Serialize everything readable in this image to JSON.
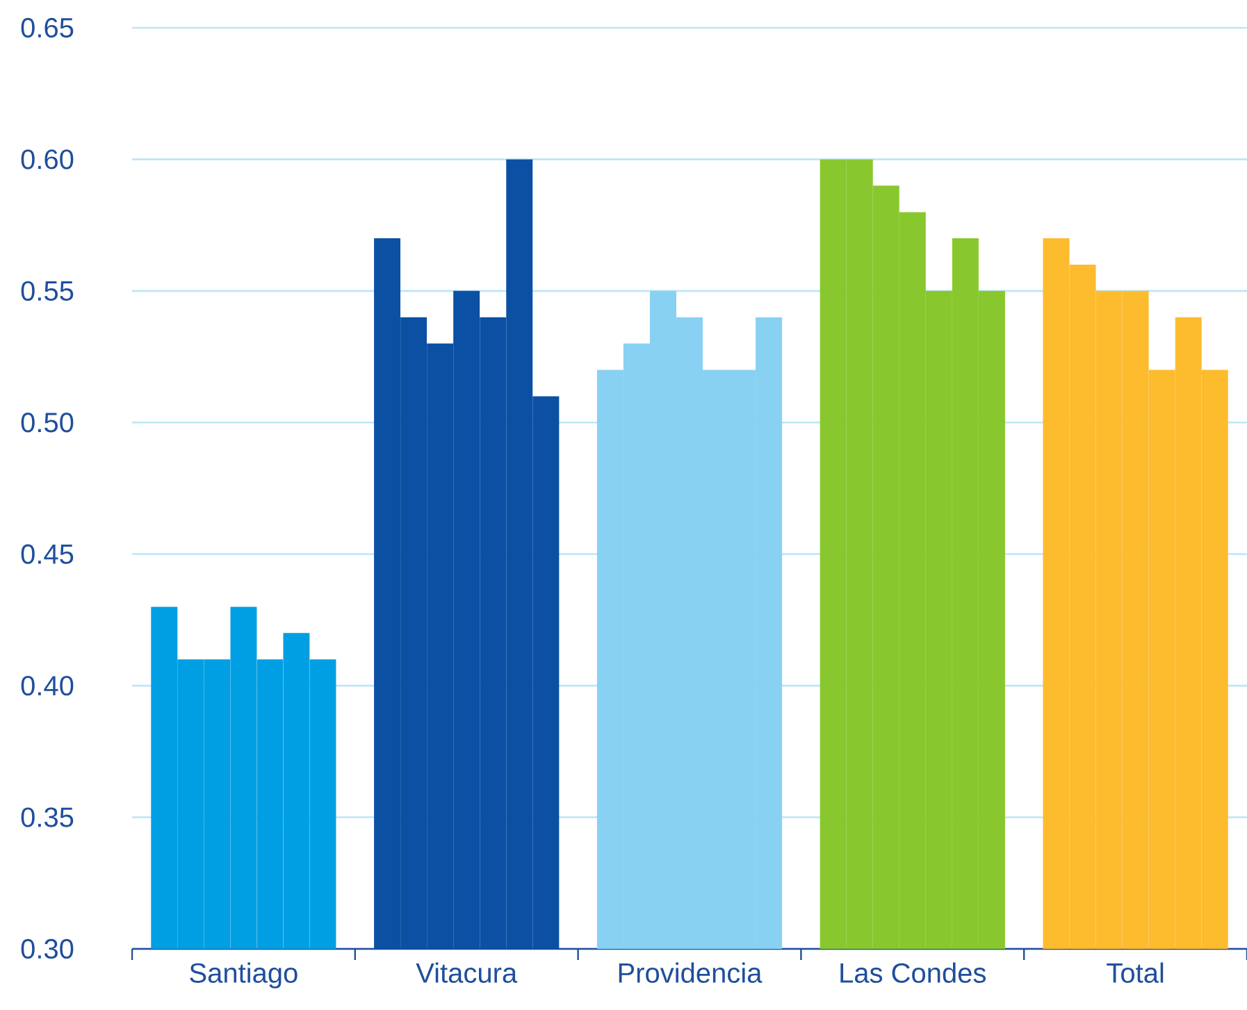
{
  "chart_data": {
    "type": "bar",
    "categories": [
      "Santiago",
      "Vitacura",
      "Providencia",
      "Las Condes",
      "Total"
    ],
    "series": [
      {
        "colors": [
          "#009fe3",
          "#0b50a3",
          "#89d1f2",
          "#88c82e",
          "#fdbb2e"
        ],
        "values": [
          0.43,
          0.57,
          0.52,
          0.6,
          0.57
        ]
      },
      {
        "colors": [
          "#009fe3",
          "#0b50a3",
          "#89d1f2",
          "#88c82e",
          "#fdbb2e"
        ],
        "values": [
          0.41,
          0.54,
          0.53,
          0.6,
          0.56
        ]
      },
      {
        "colors": [
          "#009fe3",
          "#0b50a3",
          "#89d1f2",
          "#88c82e",
          "#fdbb2e"
        ],
        "values": [
          0.41,
          0.53,
          0.55,
          0.59,
          0.55
        ]
      },
      {
        "colors": [
          "#009fe3",
          "#0b50a3",
          "#89d1f2",
          "#88c82e",
          "#fdbb2e"
        ],
        "values": [
          0.43,
          0.55,
          0.54,
          0.58,
          0.55
        ]
      },
      {
        "colors": [
          "#009fe3",
          "#0b50a3",
          "#89d1f2",
          "#88c82e",
          "#fdbb2e"
        ],
        "values": [
          0.41,
          0.54,
          0.52,
          0.55,
          0.52
        ]
      },
      {
        "colors": [
          "#009fe3",
          "#0b50a3",
          "#89d1f2",
          "#88c82e",
          "#fdbb2e"
        ],
        "values": [
          0.42,
          0.6,
          0.52,
          0.57,
          0.54
        ]
      },
      {
        "colors": [
          "#009fe3",
          "#0b50a3",
          "#89d1f2",
          "#88c82e",
          "#fdbb2e"
        ],
        "values": [
          0.41,
          0.51,
          0.54,
          0.55,
          0.52
        ]
      }
    ],
    "ylim": [
      0.3,
      0.65
    ],
    "yticks": [
      {
        "value": 0.3,
        "label": "0.30"
      },
      {
        "value": 0.35,
        "label": "0.35"
      },
      {
        "value": 0.4,
        "label": "0.40"
      },
      {
        "value": 0.45,
        "label": "0.45"
      },
      {
        "value": 0.5,
        "label": "0.50"
      },
      {
        "value": 0.55,
        "label": "0.55"
      },
      {
        "value": 0.6,
        "label": "0.60"
      },
      {
        "value": 0.65,
        "label": "0.65"
      }
    ],
    "grid": "y"
  }
}
